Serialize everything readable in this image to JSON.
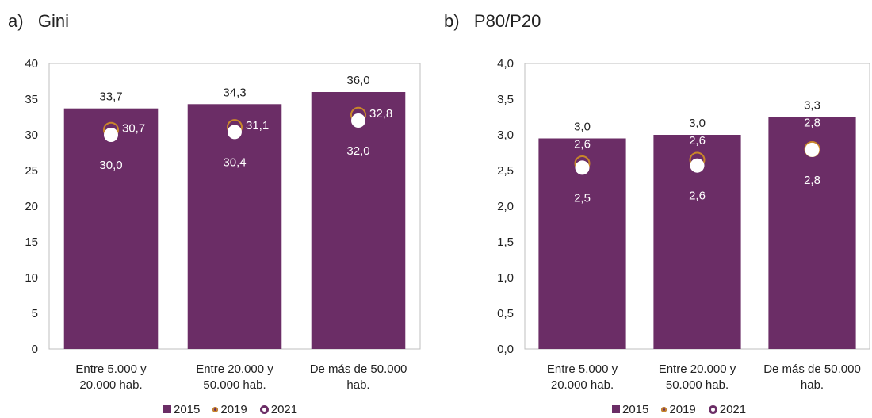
{
  "colors": {
    "bar": "#6b2d66",
    "y2019": "#c8862a",
    "y2021": "#ffffff",
    "axis": "#bfbfbf",
    "text": "#222222"
  },
  "chart_data": [
    {
      "type": "bar",
      "panel_label": "a)",
      "title": "Gini",
      "categories": [
        "Entre 5.000 y\n20.000 hab.",
        "Entre 20.000 y\n50.000 hab.",
        "De más de 50.000\nhab."
      ],
      "ylim": [
        0,
        40
      ],
      "yticks": [
        "0",
        "5",
        "10",
        "15",
        "20",
        "25",
        "30",
        "35",
        "40"
      ],
      "ytick_values": [
        0,
        5,
        10,
        15,
        20,
        25,
        30,
        35,
        40
      ],
      "series": [
        {
          "name": "2015",
          "kind": "bar",
          "values": [
            33.7,
            34.3,
            36.0
          ],
          "labels": [
            "33,7",
            "34,3",
            "36,0"
          ]
        },
        {
          "name": "2019",
          "kind": "marker",
          "values": [
            30.7,
            31.1,
            32.8
          ],
          "labels": [
            "30,7",
            "31,1",
            "32,8"
          ]
        },
        {
          "name": "2021",
          "kind": "marker",
          "values": [
            30.0,
            30.4,
            32.0
          ],
          "labels": [
            "30,0",
            "30,4",
            "32,0"
          ]
        }
      ],
      "legend": "bottom",
      "grid": false
    },
    {
      "type": "bar",
      "panel_label": "b)",
      "title": "P80/P20",
      "categories": [
        "Entre 5.000 y\n20.000 hab.",
        "Entre 20.000 y\n50.000 hab.",
        "De más de 50.000\nhab."
      ],
      "ylim": [
        0,
        4
      ],
      "yticks": [
        "0,0",
        "0,5",
        "1,0",
        "1,5",
        "2,0",
        "2,5",
        "3,0",
        "3,5",
        "4,0"
      ],
      "ytick_values": [
        0,
        0.5,
        1.0,
        1.5,
        2.0,
        2.5,
        3.0,
        3.5,
        4.0
      ],
      "series": [
        {
          "name": "2015",
          "kind": "bar",
          "values": [
            2.95,
            3.0,
            3.25
          ],
          "labels": [
            "3,0",
            "3,0",
            "3,3"
          ]
        },
        {
          "name": "2019",
          "kind": "marker",
          "values": [
            2.6,
            2.65,
            2.8
          ],
          "labels": [
            "2,6",
            "2,6",
            "2,8"
          ]
        },
        {
          "name": "2021",
          "kind": "marker",
          "values": [
            2.54,
            2.57,
            2.79
          ],
          "labels": [
            "2,5",
            "2,6",
            "2,8"
          ]
        }
      ],
      "legend": "bottom",
      "grid": false
    }
  ]
}
